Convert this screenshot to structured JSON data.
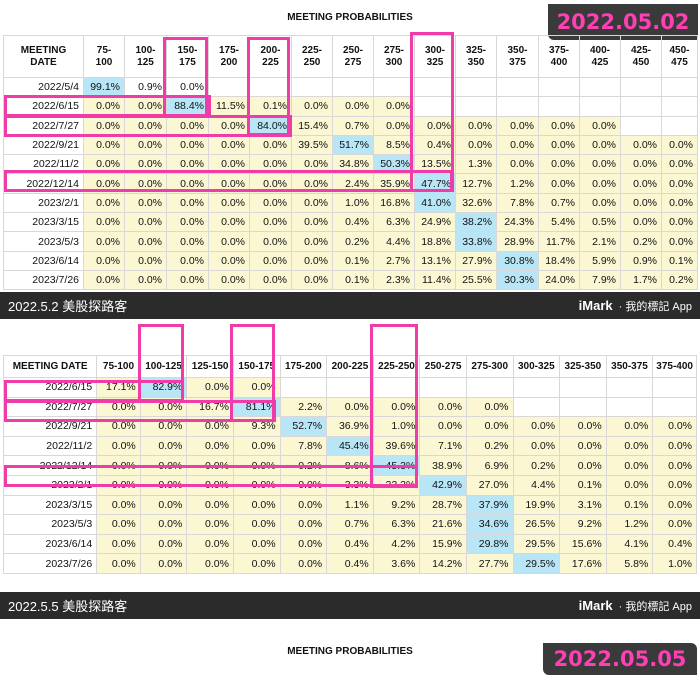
{
  "panel_a": {
    "stamp": "2022.05.02",
    "title": "MEETING PROBABILITIES",
    "footer_left": "2022.5.2 美股探路客",
    "footer_brand": "iMark",
    "footer_right": "· 我的標記 App"
  },
  "panel_b": {
    "stamp": "2022.05.05",
    "title": "MEETING PROBABILITIES",
    "footer_left": "2022.5.5 美股探路客",
    "footer_brand": "iMark",
    "footer_right": "· 我的標記 App"
  },
  "chart_data": [
    {
      "type": "table",
      "title": "MEETING PROBABILITIES",
      "date_label": "2022.05.02",
      "columns": [
        "MEETING DATE",
        "75-100",
        "100-125",
        "150-175",
        "175-200",
        "200-225",
        "225-250",
        "250-275",
        "275-300",
        "300-325",
        "325-350",
        "350-375",
        "375-400",
        "400-425",
        "425-450",
        "450-475"
      ],
      "rows": [
        [
          "2022/5/4",
          "99.1%",
          "0.9%",
          "0.0%",
          "",
          "",
          "",
          "",
          "",
          "",
          "",
          "",
          "",
          "",
          "",
          ""
        ],
        [
          "2022/6/15",
          "0.0%",
          "0.0%",
          "88.4%",
          "11.5%",
          "0.1%",
          "0.0%",
          "0.0%",
          "0.0%",
          "",
          "",
          "",
          "",
          "",
          "",
          ""
        ],
        [
          "2022/7/27",
          "0.0%",
          "0.0%",
          "0.0%",
          "0.0%",
          "84.0%",
          "15.4%",
          "0.7%",
          "0.0%",
          "0.0%",
          "0.0%",
          "0.0%",
          "0.0%",
          "0.0%",
          "",
          ""
        ],
        [
          "2022/9/21",
          "0.0%",
          "0.0%",
          "0.0%",
          "0.0%",
          "0.0%",
          "39.5%",
          "51.7%",
          "8.5%",
          "0.4%",
          "0.0%",
          "0.0%",
          "0.0%",
          "0.0%",
          "0.0%",
          "0.0%"
        ],
        [
          "2022/11/2",
          "0.0%",
          "0.0%",
          "0.0%",
          "0.0%",
          "0.0%",
          "0.0%",
          "34.8%",
          "50.3%",
          "13.5%",
          "1.3%",
          "0.0%",
          "0.0%",
          "0.0%",
          "0.0%",
          "0.0%"
        ],
        [
          "2022/12/14",
          "0.0%",
          "0.0%",
          "0.0%",
          "0.0%",
          "0.0%",
          "0.0%",
          "2.4%",
          "35.9%",
          "47.7%",
          "12.7%",
          "1.2%",
          "0.0%",
          "0.0%",
          "0.0%",
          "0.0%"
        ],
        [
          "2023/2/1",
          "0.0%",
          "0.0%",
          "0.0%",
          "0.0%",
          "0.0%",
          "0.0%",
          "1.0%",
          "16.8%",
          "41.0%",
          "32.6%",
          "7.8%",
          "0.7%",
          "0.0%",
          "0.0%",
          "0.0%"
        ],
        [
          "2023/3/15",
          "0.0%",
          "0.0%",
          "0.0%",
          "0.0%",
          "0.0%",
          "0.0%",
          "0.4%",
          "6.3%",
          "24.9%",
          "38.2%",
          "24.3%",
          "5.4%",
          "0.5%",
          "0.0%",
          "0.0%"
        ],
        [
          "2023/5/3",
          "0.0%",
          "0.0%",
          "0.0%",
          "0.0%",
          "0.0%",
          "0.0%",
          "0.2%",
          "4.4%",
          "18.8%",
          "33.8%",
          "28.9%",
          "11.7%",
          "2.1%",
          "0.2%",
          "0.0%"
        ],
        [
          "2023/6/14",
          "0.0%",
          "0.0%",
          "0.0%",
          "0.0%",
          "0.0%",
          "0.0%",
          "0.1%",
          "2.7%",
          "13.1%",
          "27.9%",
          "30.8%",
          "18.4%",
          "5.9%",
          "0.9%",
          "0.1%"
        ],
        [
          "2023/7/26",
          "0.0%",
          "0.0%",
          "0.0%",
          "0.0%",
          "0.0%",
          "0.0%",
          "0.1%",
          "2.3%",
          "11.4%",
          "25.5%",
          "30.3%",
          "24.0%",
          "7.9%",
          "1.7%",
          "0.2%"
        ]
      ],
      "highlight_color": "#b9e6f6",
      "cell_color": "#fbf7d3",
      "highlighted_cells": [
        [
          0,
          1
        ],
        [
          1,
          3
        ],
        [
          2,
          5
        ],
        [
          3,
          7
        ],
        [
          4,
          8
        ],
        [
          5,
          9
        ],
        [
          6,
          9
        ],
        [
          7,
          10
        ],
        [
          8,
          10
        ],
        [
          9,
          11
        ],
        [
          10,
          11
        ]
      ]
    },
    {
      "type": "table",
      "title": "MEETING PROBABILITIES",
      "date_label": "2022.05.05",
      "columns": [
        "MEETING DATE",
        "75-100",
        "100-125",
        "125-150",
        "150-175",
        "175-200",
        "200-225",
        "225-250",
        "250-275",
        "275-300",
        "300-325",
        "325-350",
        "350-375",
        "375-400"
      ],
      "rows": [
        [
          "2022/6/15",
          "17.1%",
          "82.9%",
          "0.0%",
          "0.0%",
          "",
          "",
          "",
          "",
          "",
          "",
          "",
          "",
          ""
        ],
        [
          "2022/7/27",
          "0.0%",
          "0.0%",
          "16.7%",
          "81.1%",
          "2.2%",
          "0.0%",
          "0.0%",
          "0.0%",
          "0.0%",
          "",
          "",
          "",
          ""
        ],
        [
          "2022/9/21",
          "0.0%",
          "0.0%",
          "0.0%",
          "9.3%",
          "52.7%",
          "36.9%",
          "1.0%",
          "0.0%",
          "0.0%",
          "0.0%",
          "0.0%",
          "0.0%",
          "0.0%"
        ],
        [
          "2022/11/2",
          "0.0%",
          "0.0%",
          "0.0%",
          "0.0%",
          "7.8%",
          "45.4%",
          "39.6%",
          "7.1%",
          "0.2%",
          "0.0%",
          "0.0%",
          "0.0%",
          "0.0%"
        ],
        [
          "2022/12/14",
          "0.0%",
          "0.0%",
          "0.0%",
          "0.0%",
          "0.2%",
          "8.6%",
          "45.3%",
          "38.9%",
          "6.9%",
          "0.2%",
          "0.0%",
          "0.0%",
          "0.0%"
        ],
        [
          "2023/2/1",
          "0.0%",
          "0.0%",
          "0.0%",
          "0.0%",
          "0.0%",
          "3.3%",
          "22.2%",
          "42.9%",
          "27.0%",
          "4.4%",
          "0.1%",
          "0.0%",
          "0.0%"
        ],
        [
          "2023/3/15",
          "0.0%",
          "0.0%",
          "0.0%",
          "0.0%",
          "0.0%",
          "1.1%",
          "9.2%",
          "28.7%",
          "37.9%",
          "19.9%",
          "3.1%",
          "0.1%",
          "0.0%"
        ],
        [
          "2023/5/3",
          "0.0%",
          "0.0%",
          "0.0%",
          "0.0%",
          "0.0%",
          "0.7%",
          "6.3%",
          "21.6%",
          "34.6%",
          "26.5%",
          "9.2%",
          "1.2%",
          "0.0%"
        ],
        [
          "2023/6/14",
          "0.0%",
          "0.0%",
          "0.0%",
          "0.0%",
          "0.0%",
          "0.4%",
          "4.2%",
          "15.9%",
          "29.8%",
          "29.5%",
          "15.6%",
          "4.1%",
          "0.4%"
        ],
        [
          "2023/7/26",
          "0.0%",
          "0.0%",
          "0.0%",
          "0.0%",
          "0.0%",
          "0.4%",
          "3.6%",
          "14.2%",
          "27.7%",
          "29.5%",
          "17.6%",
          "5.8%",
          "1.0%"
        ]
      ],
      "highlight_color": "#b9e6f6",
      "cell_color": "#fbf7d3",
      "highlighted_cells": [
        [
          0,
          2
        ],
        [
          1,
          4
        ],
        [
          2,
          5
        ],
        [
          3,
          6
        ],
        [
          4,
          7
        ],
        [
          5,
          8
        ],
        [
          6,
          9
        ],
        [
          7,
          9
        ],
        [
          8,
          9
        ],
        [
          9,
          10
        ]
      ]
    }
  ]
}
